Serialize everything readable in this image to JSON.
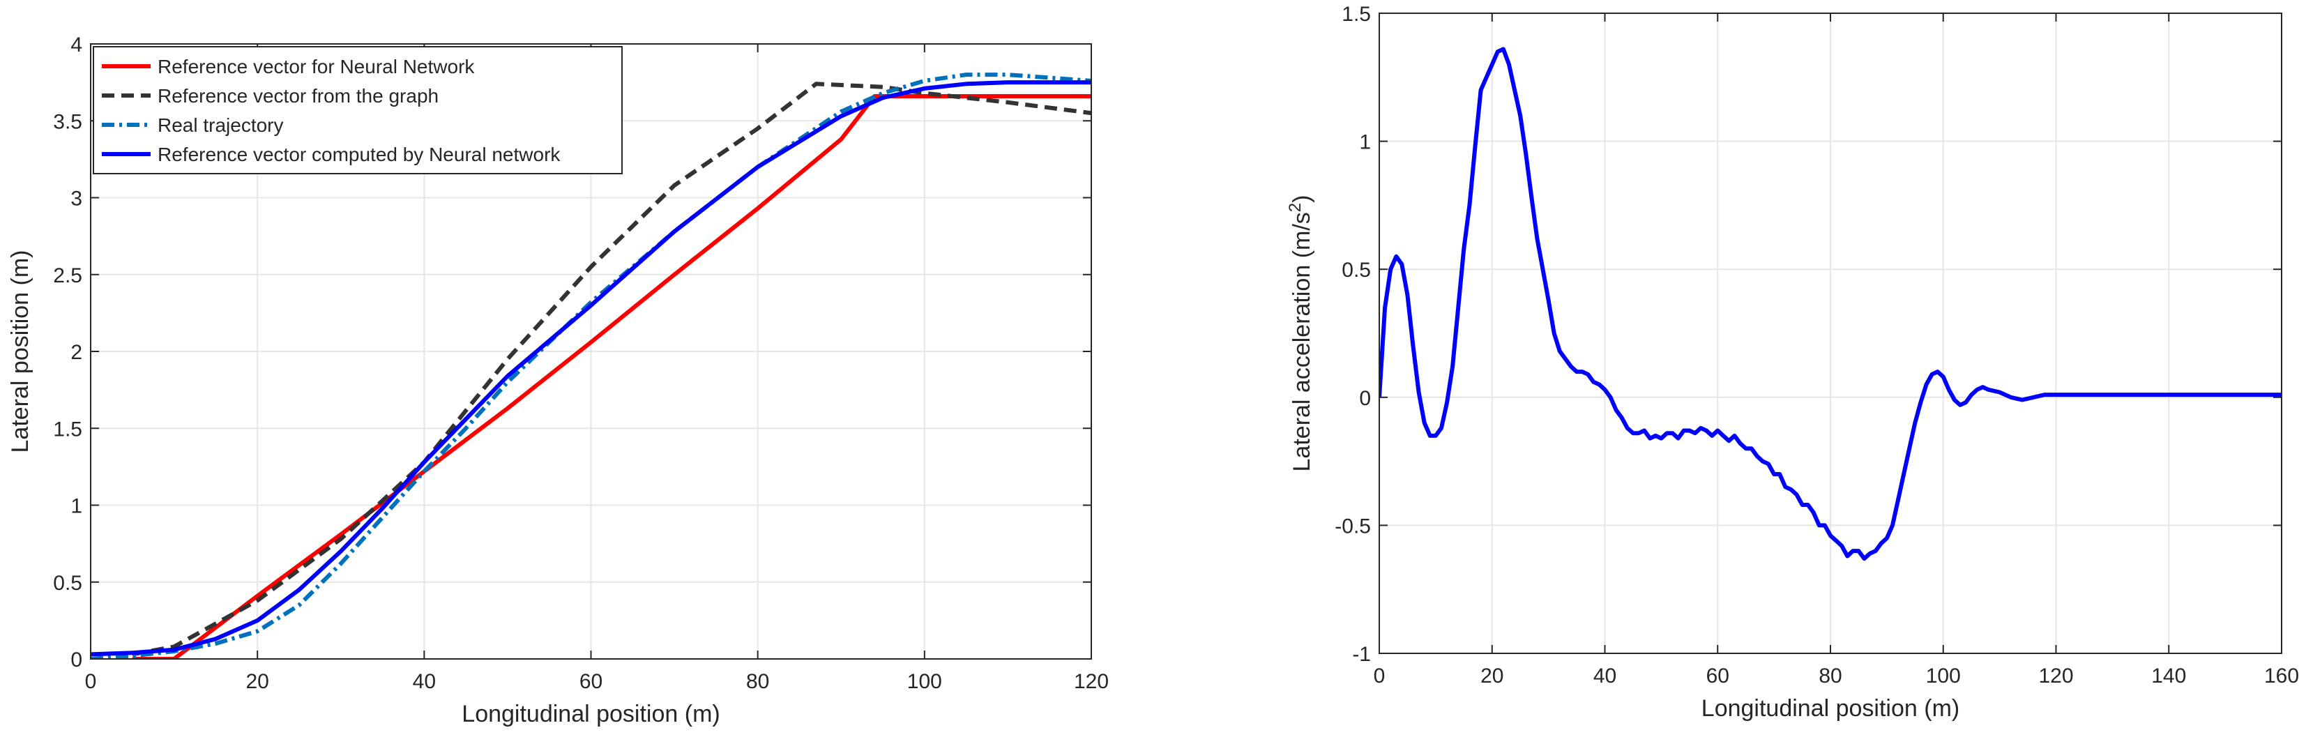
{
  "chart_data": [
    {
      "type": "line",
      "xlabel": "Longitudinal position (m)",
      "ylabel": "Lateral position (m)",
      "xlim": [
        0,
        120
      ],
      "ylim": [
        0,
        4
      ],
      "xticks": [
        "0",
        "20",
        "40",
        "60",
        "80",
        "100",
        "120"
      ],
      "yticks": [
        "0",
        "0.5",
        "1",
        "1.5",
        "2",
        "2.5",
        "3",
        "3.5",
        "4"
      ],
      "grid": true,
      "legend_placement": "top-left",
      "series": [
        {
          "name": "Reference vector for Neural Network",
          "color": "#ff0000",
          "style": "solid",
          "x": [
            5,
            10,
            20,
            30,
            40,
            50,
            60,
            70,
            80,
            90,
            94,
            100,
            110,
            120
          ],
          "y": [
            0,
            0,
            0.41,
            0.81,
            1.22,
            1.63,
            2.06,
            2.5,
            2.93,
            3.38,
            3.66,
            3.66,
            3.66,
            3.66
          ]
        },
        {
          "name": "Reference vector from the graph",
          "color": "#333333",
          "style": "dashed",
          "x": [
            5,
            10,
            20,
            30,
            40,
            50,
            60,
            70,
            80,
            87,
            95,
            100,
            110,
            120
          ],
          "y": [
            0.03,
            0.08,
            0.38,
            0.78,
            1.28,
            1.95,
            2.55,
            3.08,
            3.45,
            3.74,
            3.72,
            3.68,
            3.62,
            3.55
          ]
        },
        {
          "name": "Real trajectory",
          "color": "#0072bd",
          "style": "dashdot",
          "x": [
            0,
            5,
            10,
            15,
            20,
            25,
            30,
            35,
            40,
            45,
            50,
            60,
            70,
            80,
            90,
            95,
            100,
            105,
            110,
            115,
            120
          ],
          "y": [
            0,
            0.02,
            0.05,
            0.1,
            0.18,
            0.35,
            0.62,
            0.92,
            1.22,
            1.5,
            1.8,
            2.32,
            2.78,
            3.2,
            3.56,
            3.68,
            3.76,
            3.8,
            3.8,
            3.78,
            3.76
          ]
        },
        {
          "name": "Reference vector computed by Neural network",
          "color": "#0000ff",
          "style": "solid",
          "x": [
            0,
            5,
            10,
            15,
            20,
            25,
            30,
            35,
            40,
            45,
            50,
            60,
            70,
            80,
            90,
            95,
            100,
            105,
            110,
            115,
            120
          ],
          "y": [
            0.03,
            0.04,
            0.06,
            0.13,
            0.25,
            0.45,
            0.7,
            0.98,
            1.28,
            1.56,
            1.84,
            2.3,
            2.78,
            3.2,
            3.53,
            3.65,
            3.71,
            3.74,
            3.75,
            3.75,
            3.75
          ]
        }
      ]
    },
    {
      "type": "line",
      "xlabel": "Longitudinal position (m)",
      "ylabel": "Lateral acceleration (m/s",
      "ylabel_sup": "2",
      "ylabel_end": ")",
      "xlim": [
        0,
        160
      ],
      "ylim": [
        -1,
        1.5
      ],
      "xticks": [
        "0",
        "20",
        "40",
        "60",
        "80",
        "100",
        "120",
        "140",
        "160"
      ],
      "yticks": [
        "-1",
        "-0.5",
        "0",
        "0.5",
        "1",
        "1.5"
      ],
      "grid": true,
      "series": [
        {
          "color": "#0000ff",
          "style": "solid",
          "x": [
            0,
            1,
            2,
            3,
            4,
            5,
            6,
            7,
            8,
            9,
            10,
            11,
            12,
            13,
            14,
            15,
            16,
            17,
            18,
            19,
            20,
            21,
            22,
            23,
            24,
            25,
            26,
            27,
            28,
            29,
            30,
            31,
            32,
            33,
            34,
            35,
            36,
            37,
            38,
            39,
            40,
            41,
            42,
            43,
            44,
            45,
            46,
            47,
            48,
            49,
            50,
            51,
            52,
            53,
            54,
            55,
            56,
            57,
            58,
            59,
            60,
            61,
            62,
            63,
            64,
            65,
            66,
            67,
            68,
            69,
            70,
            71,
            72,
            73,
            74,
            75,
            76,
            77,
            78,
            79,
            80,
            81,
            82,
            83,
            84,
            85,
            86,
            87,
            88,
            89,
            90,
            91,
            92,
            93,
            94,
            95,
            96,
            97,
            98,
            99,
            100,
            101,
            102,
            103,
            104,
            105,
            106,
            107,
            108,
            110,
            112,
            114,
            116,
            118,
            120,
            122,
            124,
            126,
            128,
            130,
            132,
            134,
            136,
            138,
            140,
            142,
            144,
            146,
            148,
            150,
            152,
            154,
            156,
            158,
            160
          ],
          "y": [
            0,
            0.35,
            0.5,
            0.55,
            0.52,
            0.4,
            0.2,
            0.02,
            -0.1,
            -0.15,
            -0.15,
            -0.12,
            -0.02,
            0.12,
            0.35,
            0.58,
            0.75,
            0.98,
            1.2,
            1.25,
            1.3,
            1.35,
            1.36,
            1.3,
            1.2,
            1.1,
            0.95,
            0.78,
            0.62,
            0.5,
            0.38,
            0.25,
            0.18,
            0.15,
            0.12,
            0.1,
            0.1,
            0.09,
            0.06,
            0.05,
            0.03,
            0.0,
            -0.05,
            -0.08,
            -0.12,
            -0.14,
            -0.14,
            -0.13,
            -0.16,
            -0.15,
            -0.16,
            -0.14,
            -0.14,
            -0.16,
            -0.13,
            -0.13,
            -0.14,
            -0.12,
            -0.13,
            -0.15,
            -0.13,
            -0.15,
            -0.17,
            -0.15,
            -0.18,
            -0.2,
            -0.2,
            -0.23,
            -0.25,
            -0.26,
            -0.3,
            -0.3,
            -0.35,
            -0.36,
            -0.38,
            -0.42,
            -0.42,
            -0.45,
            -0.5,
            -0.5,
            -0.54,
            -0.56,
            -0.58,
            -0.62,
            -0.6,
            -0.6,
            -0.63,
            -0.61,
            -0.6,
            -0.57,
            -0.55,
            -0.5,
            -0.4,
            -0.3,
            -0.2,
            -0.1,
            -0.02,
            0.05,
            0.09,
            0.1,
            0.08,
            0.03,
            -0.01,
            -0.03,
            -0.02,
            0.01,
            0.03,
            0.04,
            0.03,
            0.02,
            0.0,
            -0.01,
            0.0,
            0.01,
            0.01,
            0.01,
            0.01,
            0.01,
            0.01,
            0.01,
            0.01,
            0.01,
            0.01,
            0.01,
            0.01,
            0.01,
            0.01,
            0.01,
            0.01,
            0.01,
            0.01,
            0.01,
            0.01,
            0.01,
            0.01
          ]
        }
      ]
    }
  ]
}
